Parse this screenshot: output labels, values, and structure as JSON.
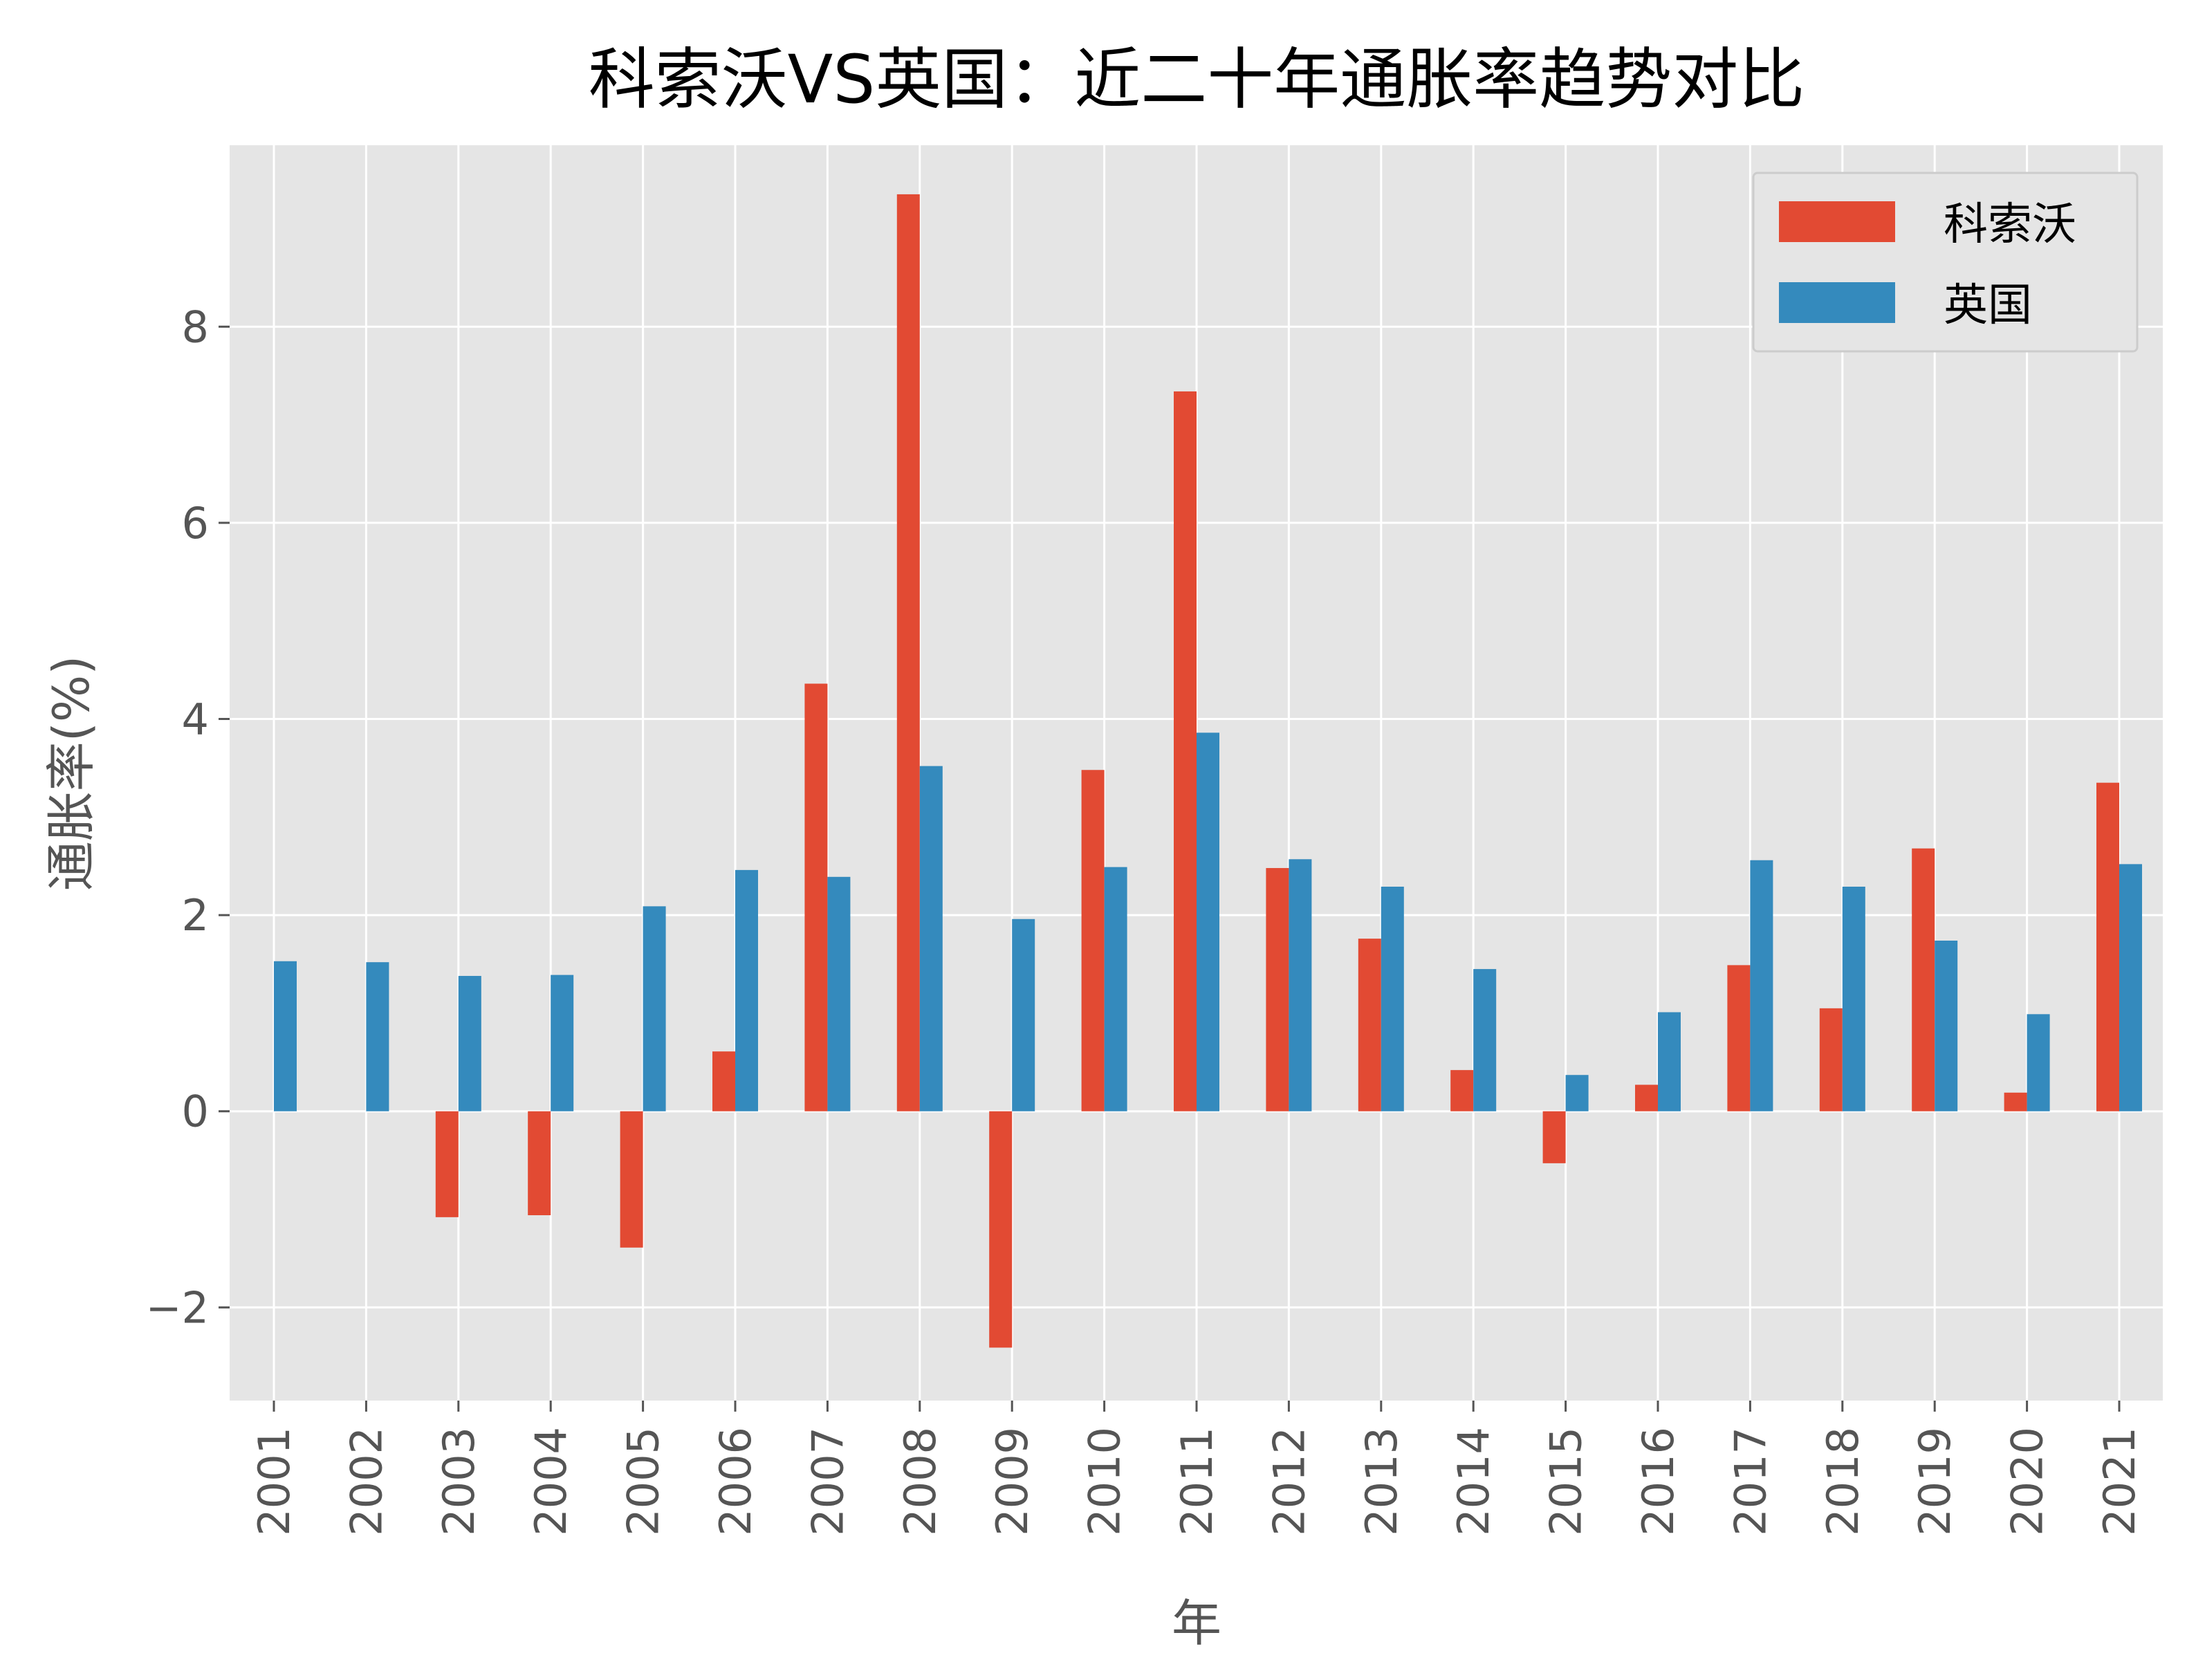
{
  "chart_data": {
    "type": "bar",
    "title": "科索沃VS英国：近二十年通胀率趋势对比",
    "xlabel": "年",
    "ylabel": "通胀率(%)",
    "ylim": [
      -2.95,
      9.85
    ],
    "yticks": [
      -2,
      0,
      2,
      4,
      6,
      8
    ],
    "ytick_labels": [
      "−2",
      "0",
      "2",
      "4",
      "6",
      "8"
    ],
    "grid": true,
    "legend_position": "top-right",
    "categories": [
      "2001",
      "2002",
      "2003",
      "2004",
      "2005",
      "2006",
      "2007",
      "2008",
      "2009",
      "2010",
      "2011",
      "2012",
      "2013",
      "2014",
      "2015",
      "2016",
      "2017",
      "2018",
      "2019",
      "2020",
      "2021"
    ],
    "series": [
      {
        "name": "科索沃",
        "color": "#E24A33",
        "values": [
          0,
          0,
          -1.08,
          -1.06,
          -1.39,
          0.61,
          4.36,
          9.35,
          -2.41,
          3.48,
          7.34,
          2.48,
          1.76,
          0.42,
          -0.53,
          0.27,
          1.49,
          1.05,
          2.68,
          0.19,
          3.35
        ]
      },
      {
        "name": "英国",
        "color": "#348ABD",
        "values": [
          1.53,
          1.52,
          1.38,
          1.39,
          2.09,
          2.46,
          2.39,
          3.52,
          1.96,
          2.49,
          3.86,
          2.57,
          2.29,
          1.45,
          0.37,
          1.01,
          2.56,
          2.29,
          1.74,
          0.99,
          2.52
        ]
      }
    ],
    "colors": {
      "plot_background": "#E5E5E5",
      "grid": "#FFFFFF",
      "text": "#555555",
      "title": "#000000"
    }
  }
}
